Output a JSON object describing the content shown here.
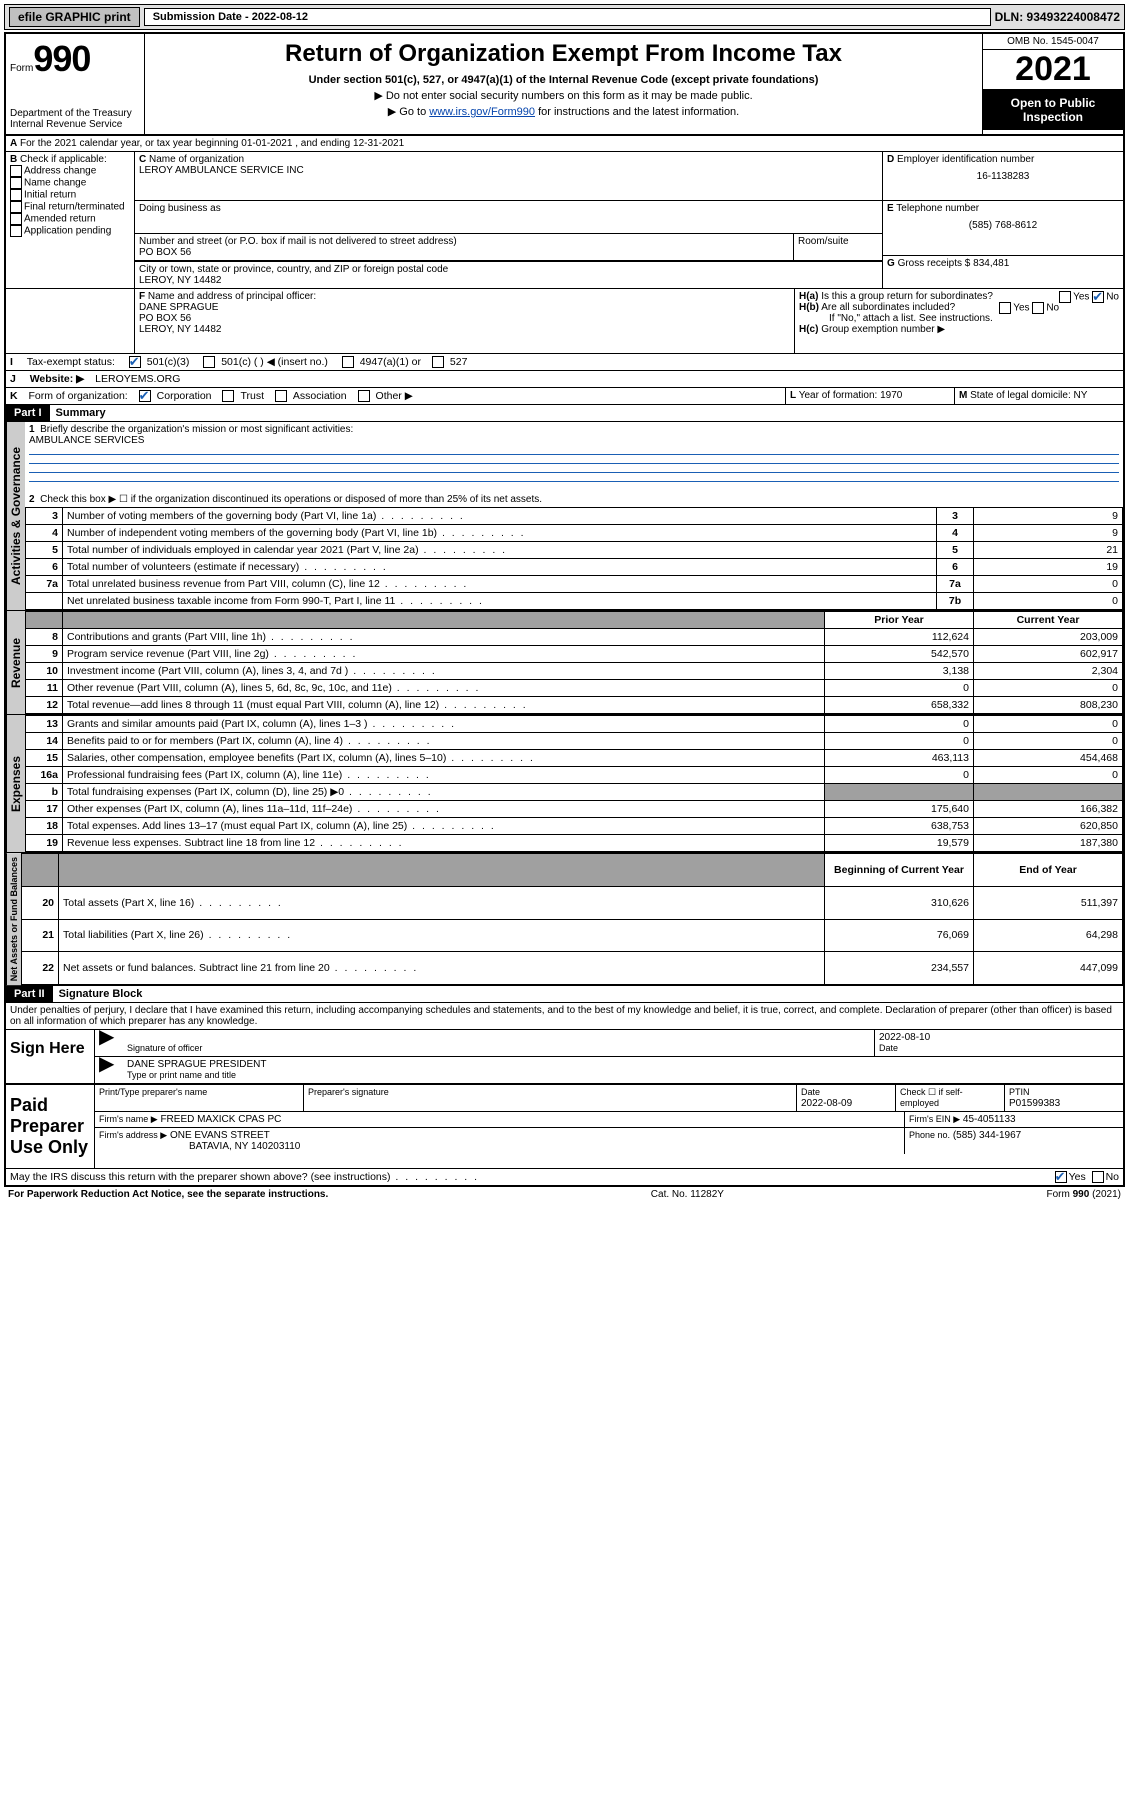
{
  "topbar": {
    "efile": "efile GRAPHIC print",
    "subdate_label": "Submission Date - 2022-08-12",
    "dln": "DLN: 93493224008472"
  },
  "header": {
    "form_label": "Form",
    "form_no": "990",
    "dept": "Department of the Treasury",
    "irs": "Internal Revenue Service",
    "title": "Return of Organization Exempt From Income Tax",
    "sub": "Under section 501(c), 527, or 4947(a)(1) of the Internal Revenue Code (except private foundations)",
    "note1": "Do not enter social security numbers on this form as it may be made public.",
    "note2": "Go to ",
    "note2_link": "www.irs.gov/Form990",
    "note2_tail": " for instructions and the latest information.",
    "omb": "OMB No. 1545-0047",
    "year": "2021",
    "inspect": "Open to Public Inspection"
  },
  "lineA": "For the 2021 calendar year, or tax year beginning 01-01-2021   , and ending 12-31-2021",
  "B": {
    "label": "Check if applicable:",
    "items": [
      "Address change",
      "Name change",
      "Initial return",
      "Final return/terminated",
      "Amended return",
      "Application pending"
    ]
  },
  "C": {
    "name_label": "Name of organization",
    "name": "LEROY AMBULANCE SERVICE INC",
    "dba_label": "Doing business as",
    "addr_label": "Number and street (or P.O. box if mail is not delivered to street address)",
    "room_label": "Room/suite",
    "addr": "PO BOX 56",
    "city_label": "City or town, state or province, country, and ZIP or foreign postal code",
    "city": "LEROY, NY  14482"
  },
  "D": {
    "label": "Employer identification number",
    "val": "16-1138283"
  },
  "E": {
    "label": "Telephone number",
    "val": "(585) 768-8612"
  },
  "G": {
    "label": "Gross receipts $",
    "val": "834,481"
  },
  "F": {
    "label": "Name and address of principal officer:",
    "name": "DANE SPRAGUE",
    "addr1": "PO BOX 56",
    "addr2": "LEROY, NY  14482"
  },
  "H": {
    "a": "Is this a group return for subordinates?",
    "b": "Are all subordinates included?",
    "b_note": "If \"No,\" attach a list. See instructions.",
    "c": "Group exemption number ▶"
  },
  "I": {
    "label": "Tax-exempt status:",
    "opts": [
      "501(c)(3)",
      "501(c) (  ) ◀ (insert no.)",
      "4947(a)(1) or",
      "527"
    ]
  },
  "J": {
    "label": "Website: ▶",
    "val": "LEROYEMS.ORG"
  },
  "K": {
    "label": "Form of organization:",
    "opts": [
      "Corporation",
      "Trust",
      "Association",
      "Other ▶"
    ]
  },
  "L": {
    "label": "Year of formation:",
    "val": "1970"
  },
  "M": {
    "label": "State of legal domicile:",
    "val": "NY"
  },
  "part1": {
    "title": "Summary",
    "q1": "Briefly describe the organization's mission or most significant activities:",
    "q1_ans": "AMBULANCE SERVICES",
    "q2": "Check this box ▶ ☐  if the organization discontinued its operations or disposed of more than 25% of its net assets.",
    "rows_gov": [
      {
        "n": "3",
        "d": "Number of voting members of the governing body (Part VI, line 1a)",
        "box": "3",
        "v": "9"
      },
      {
        "n": "4",
        "d": "Number of independent voting members of the governing body (Part VI, line 1b)",
        "box": "4",
        "v": "9"
      },
      {
        "n": "5",
        "d": "Total number of individuals employed in calendar year 2021 (Part V, line 2a)",
        "box": "5",
        "v": "21"
      },
      {
        "n": "6",
        "d": "Total number of volunteers (estimate if necessary)",
        "box": "6",
        "v": "19"
      },
      {
        "n": "7a",
        "d": "Total unrelated business revenue from Part VIII, column (C), line 12",
        "box": "7a",
        "v": "0"
      },
      {
        "n": "",
        "d": "Net unrelated business taxable income from Form 990-T, Part I, line 11",
        "box": "7b",
        "v": "0"
      }
    ],
    "hdr_prior": "Prior Year",
    "hdr_curr": "Current Year",
    "rows_rev": [
      {
        "n": "8",
        "d": "Contributions and grants (Part VIII, line 1h)",
        "p": "112,624",
        "c": "203,009"
      },
      {
        "n": "9",
        "d": "Program service revenue (Part VIII, line 2g)",
        "p": "542,570",
        "c": "602,917"
      },
      {
        "n": "10",
        "d": "Investment income (Part VIII, column (A), lines 3, 4, and 7d )",
        "p": "3,138",
        "c": "2,304"
      },
      {
        "n": "11",
        "d": "Other revenue (Part VIII, column (A), lines 5, 6d, 8c, 9c, 10c, and 11e)",
        "p": "0",
        "c": "0"
      },
      {
        "n": "12",
        "d": "Total revenue—add lines 8 through 11 (must equal Part VIII, column (A), line 12)",
        "p": "658,332",
        "c": "808,230"
      }
    ],
    "rows_exp": [
      {
        "n": "13",
        "d": "Grants and similar amounts paid (Part IX, column (A), lines 1–3 )",
        "p": "0",
        "c": "0"
      },
      {
        "n": "14",
        "d": "Benefits paid to or for members (Part IX, column (A), line 4)",
        "p": "0",
        "c": "0"
      },
      {
        "n": "15",
        "d": "Salaries, other compensation, employee benefits (Part IX, column (A), lines 5–10)",
        "p": "463,113",
        "c": "454,468"
      },
      {
        "n": "16a",
        "d": "Professional fundraising fees (Part IX, column (A), line 11e)",
        "p": "0",
        "c": "0"
      },
      {
        "n": "b",
        "d": "Total fundraising expenses (Part IX, column (D), line 25) ▶0",
        "p": "gray",
        "c": "gray"
      },
      {
        "n": "17",
        "d": "Other expenses (Part IX, column (A), lines 11a–11d, 11f–24e)",
        "p": "175,640",
        "c": "166,382"
      },
      {
        "n": "18",
        "d": "Total expenses. Add lines 13–17 (must equal Part IX, column (A), line 25)",
        "p": "638,753",
        "c": "620,850"
      },
      {
        "n": "19",
        "d": "Revenue less expenses. Subtract line 18 from line 12",
        "p": "19,579",
        "c": "187,380"
      }
    ],
    "hdr_beg": "Beginning of Current Year",
    "hdr_end": "End of Year",
    "rows_net": [
      {
        "n": "20",
        "d": "Total assets (Part X, line 16)",
        "p": "310,626",
        "c": "511,397"
      },
      {
        "n": "21",
        "d": "Total liabilities (Part X, line 26)",
        "p": "76,069",
        "c": "64,298"
      },
      {
        "n": "22",
        "d": "Net assets or fund balances. Subtract line 21 from line 20",
        "p": "234,557",
        "c": "447,099"
      }
    ]
  },
  "part2": {
    "title": "Signature Block",
    "decl": "Under penalties of perjury, I declare that I have examined this return, including accompanying schedules and statements, and to the best of my knowledge and belief, it is true, correct, and complete. Declaration of preparer (other than officer) is based on all information of which preparer has any knowledge.",
    "sign_here": "Sign Here",
    "sig_officer": "Signature of officer",
    "sig_date": "2022-08-10",
    "date_label": "Date",
    "officer_name": "DANE SPRAGUE  PRESIDENT",
    "officer_label": "Type or print name and title",
    "paid": "Paid Preparer Use Only",
    "p_name_label": "Print/Type preparer's name",
    "p_sig_label": "Preparer's signature",
    "p_date_label": "Date",
    "p_date": "2022-08-09",
    "p_check": "Check ☐ if self-employed",
    "ptin_label": "PTIN",
    "ptin": "P01599383",
    "firm_name_label": "Firm's name    ▶",
    "firm_name": "FREED MAXICK CPAS PC",
    "firm_ein_label": "Firm's EIN ▶",
    "firm_ein": "45-4051133",
    "firm_addr_label": "Firm's address ▶",
    "firm_addr1": "ONE EVANS STREET",
    "firm_addr2": "BATAVIA, NY  140203110",
    "phone_label": "Phone no.",
    "phone": "(585) 344-1967",
    "discuss": "May the IRS discuss this return with the preparer shown above? (see instructions)"
  },
  "footer": {
    "left": "For Paperwork Reduction Act Notice, see the separate instructions.",
    "mid": "Cat. No. 11282Y",
    "right": "Form 990 (2021)"
  },
  "tabs": {
    "gov": "Activities & Governance",
    "rev": "Revenue",
    "exp": "Expenses",
    "net": "Net Assets or Fund Balances"
  }
}
